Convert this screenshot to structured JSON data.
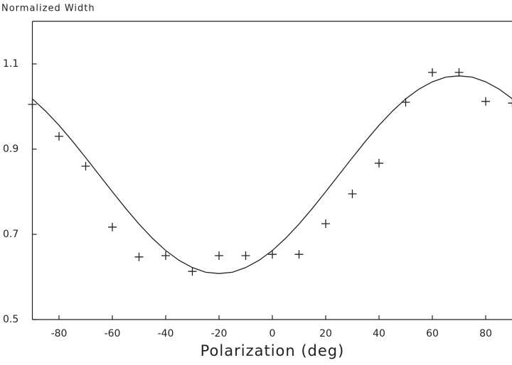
{
  "chart_data": {
    "type": "scatter",
    "y_label": "Normalized Width",
    "x_label": "Polarization (deg)",
    "xlim": [
      -90,
      90
    ],
    "ylim": [
      0.5,
      1.2
    ],
    "xticks": [
      -80,
      -60,
      -40,
      -20,
      0,
      20,
      40,
      60,
      80
    ],
    "yticks": [
      0.5,
      0.7,
      0.9,
      1.1
    ],
    "grid": false,
    "series": [
      {
        "color": "#222222",
        "marker": "+",
        "x": [
          -90,
          -80,
          -70,
          -60,
          -50,
          -40,
          -30,
          -20,
          -10,
          0,
          10,
          20,
          30,
          40,
          50,
          60,
          70,
          80,
          90
        ],
        "values": [
          1.005,
          0.93,
          0.86,
          0.717,
          0.647,
          0.65,
          0.613,
          0.65,
          0.65,
          0.653,
          0.653,
          0.725,
          0.795,
          0.867,
          1.01,
          1.08,
          1.08,
          1.012,
          1.008
        ]
      },
      {
        "color": "#222222",
        "marker": "line",
        "x": [
          -90,
          -85,
          -80,
          -75,
          -70,
          -65,
          -60,
          -55,
          -50,
          -45,
          -40,
          -35,
          -30,
          -25,
          -20,
          -15,
          -10,
          -5,
          0,
          5,
          10,
          15,
          20,
          25,
          30,
          35,
          40,
          45,
          50,
          55,
          60,
          65,
          70,
          75,
          80,
          85,
          90
        ],
        "values": [
          1.018,
          0.989,
          0.956,
          0.919,
          0.88,
          0.84,
          0.8,
          0.761,
          0.724,
          0.691,
          0.662,
          0.639,
          0.622,
          0.611,
          0.608,
          0.611,
          0.622,
          0.639,
          0.662,
          0.691,
          0.724,
          0.761,
          0.8,
          0.84,
          0.88,
          0.919,
          0.956,
          0.989,
          1.018,
          1.041,
          1.058,
          1.069,
          1.072,
          1.069,
          1.058,
          1.041,
          1.018
        ]
      }
    ]
  }
}
